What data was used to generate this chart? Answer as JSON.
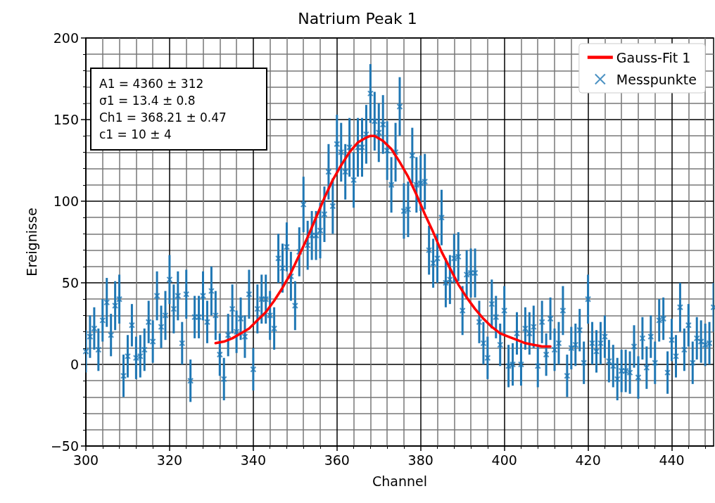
{
  "chart_data": {
    "type": "scatter",
    "title": "Natrium Peak 1",
    "xlabel": "Channel",
    "ylabel": "Ereignisse",
    "xlim": [
      300,
      450
    ],
    "xticks": [
      300,
      320,
      340,
      360,
      380,
      400,
      420,
      440
    ],
    "ylim": [
      -50,
      200
    ],
    "yticks": [
      -50,
      0,
      50,
      100,
      150,
      200
    ],
    "grid": true,
    "legend": "top right",
    "annotations": [
      "A1 = 4360 ± 312",
      "σ1 = 13.4 ± 0.8",
      "Ch1 = 368.21 ± 0.47",
      "c1 = 10 ± 4"
    ],
    "series": [
      {
        "name": "Gauss-Fit 1",
        "type": "line",
        "color": "#ff0000",
        "marker": "none",
        "line_style": "solid",
        "x": [
          331,
          333,
          335,
          337,
          339,
          341,
          343,
          345,
          347,
          349,
          351,
          353,
          355,
          357,
          359,
          361,
          363,
          365,
          367,
          368,
          369,
          371,
          373,
          375,
          377,
          379,
          381,
          383,
          385,
          387,
          389,
          391,
          393,
          395,
          397,
          399,
          401,
          403,
          405,
          407,
          409,
          411
        ],
        "values": [
          13,
          14,
          16,
          19,
          22,
          27,
          32,
          39,
          47,
          56,
          67,
          78,
          90,
          102,
          113,
          122,
          130,
          136,
          139,
          140,
          140,
          137,
          132,
          124,
          115,
          104,
          92,
          81,
          69,
          59,
          49,
          41,
          34,
          28,
          23,
          19,
          17,
          15,
          13,
          12,
          11,
          11
        ]
      },
      {
        "name": "Messpunkte",
        "color": "#1f77b4",
        "marker": "cross",
        "x": [
          300,
          301,
          302,
          303,
          304,
          305,
          306,
          307,
          308,
          309,
          310,
          311,
          312,
          313,
          314,
          315,
          316,
          317,
          318,
          319,
          320,
          321,
          322,
          323,
          324,
          325,
          326,
          327,
          328,
          329,
          330,
          331,
          332,
          333,
          334,
          335,
          336,
          337,
          338,
          339,
          340,
          341,
          342,
          343,
          344,
          345,
          346,
          347,
          348,
          349,
          350,
          351,
          352,
          353,
          354,
          355,
          356,
          357,
          358,
          359,
          360,
          361,
          362,
          363,
          364,
          365,
          366,
          367,
          368,
          369,
          370,
          371,
          372,
          373,
          374,
          375,
          376,
          377,
          378,
          379,
          380,
          381,
          382,
          383,
          384,
          385,
          386,
          387,
          388,
          389,
          390,
          391,
          392,
          393,
          394,
          395,
          396,
          397,
          398,
          399,
          400,
          401,
          402,
          403,
          404,
          405,
          406,
          407,
          408,
          409,
          410,
          411,
          412,
          413,
          414,
          415,
          416,
          417,
          418,
          419,
          420,
          421,
          422,
          423,
          424,
          425,
          426,
          427,
          428,
          429,
          430,
          431,
          432,
          433,
          434,
          435,
          436,
          437,
          438,
          439,
          440,
          441,
          442,
          443,
          444,
          445,
          446,
          447,
          448,
          449,
          450
        ],
        "values": [
          8,
          17,
          22,
          9,
          27,
          38,
          18,
          36,
          40,
          -7,
          5,
          24,
          4,
          5,
          9,
          26,
          14,
          42,
          23,
          30,
          52,
          34,
          42,
          13,
          43,
          -10,
          29,
          29,
          42,
          26,
          45,
          30,
          6,
          -9,
          18,
          34,
          20,
          28,
          17,
          43,
          -3,
          34,
          40,
          40,
          30,
          22,
          65,
          59,
          72,
          54,
          36,
          69,
          98,
          73,
          79,
          79,
          82,
          92,
          118,
          97,
          135,
          130,
          118,
          133,
          113,
          133,
          133,
          141,
          166,
          149,
          142,
          147,
          131,
          110,
          130,
          158,
          94,
          95,
          128,
          110,
          111,
          112,
          70,
          62,
          65,
          90,
          50,
          52,
          65,
          66,
          33,
          55,
          56,
          56,
          26,
          13,
          4,
          37,
          29,
          12,
          33,
          -1,
          0,
          19,
          0,
          22,
          19,
          23,
          -1,
          26,
          6,
          28,
          9,
          13,
          33,
          -7,
          10,
          12,
          21,
          1,
          40,
          13,
          8,
          13,
          17,
          2,
          -1,
          -9,
          -4,
          -4,
          -5,
          11,
          -8,
          16,
          -2,
          17,
          1,
          27,
          28,
          -5,
          15,
          5,
          35,
          9,
          24,
          1,
          16,
          14,
          12,
          13,
          35
        ],
        "errors": [
          13,
          13,
          13,
          13,
          13,
          15,
          13,
          15,
          15,
          13,
          13,
          13,
          13,
          13,
          13,
          13,
          13,
          15,
          13,
          15,
          15,
          15,
          15,
          13,
          15,
          13,
          13,
          13,
          15,
          13,
          15,
          15,
          13,
          13,
          13,
          15,
          13,
          13,
          13,
          15,
          13,
          15,
          15,
          15,
          15,
          13,
          15,
          15,
          15,
          15,
          15,
          15,
          17,
          15,
          15,
          15,
          17,
          17,
          17,
          17,
          18,
          18,
          17,
          18,
          17,
          18,
          18,
          18,
          18,
          18,
          18,
          18,
          18,
          17,
          18,
          18,
          17,
          17,
          17,
          17,
          17,
          17,
          15,
          15,
          15,
          17,
          15,
          15,
          15,
          15,
          15,
          15,
          15,
          15,
          13,
          13,
          13,
          15,
          13,
          13,
          15,
          13,
          13,
          13,
          13,
          13,
          13,
          13,
          13,
          13,
          13,
          13,
          13,
          13,
          15,
          13,
          13,
          13,
          13,
          13,
          15,
          13,
          13,
          13,
          13,
          13,
          13,
          13,
          13,
          13,
          13,
          13,
          13,
          13,
          13,
          13,
          13,
          13,
          13,
          13,
          13,
          13,
          15,
          13,
          13,
          13,
          13,
          13,
          13,
          13,
          15
        ]
      }
    ]
  }
}
